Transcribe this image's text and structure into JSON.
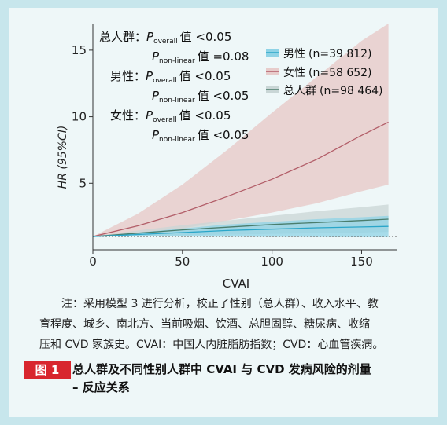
{
  "chart_data": {
    "type": "line",
    "xlabel": "CVAI",
    "ylabel": "HR (95%CI)",
    "xlim": [
      0,
      170
    ],
    "ylim": [
      0,
      17
    ],
    "xticks": [
      0,
      50,
      100,
      150
    ],
    "yticks": [
      5,
      10,
      15
    ],
    "reference_line": 1,
    "x": [
      0,
      25,
      50,
      75,
      100,
      125,
      150,
      165
    ],
    "series": [
      {
        "name": "男性",
        "n_label": "(n=39 812)",
        "color": "#2aa6c9",
        "band_color": "#8fd3e6",
        "values": [
          1.0,
          1.15,
          1.3,
          1.45,
          1.55,
          1.65,
          1.72,
          1.76
        ],
        "lower": [
          1.0,
          1.02,
          1.0,
          0.98,
          0.97,
          0.96,
          0.95,
          0.95
        ],
        "upper": [
          1.0,
          1.3,
          1.6,
          1.9,
          2.1,
          2.3,
          2.45,
          2.55
        ]
      },
      {
        "name": "女性",
        "n_label": "(n=58 652)",
        "color": "#b25d68",
        "band_color": "#e7cccb",
        "values": [
          1.0,
          1.8,
          2.8,
          4.0,
          5.3,
          6.8,
          8.6,
          9.6
        ],
        "lower": [
          1.0,
          1.3,
          1.6,
          2.2,
          2.8,
          3.5,
          4.4,
          4.9
        ],
        "upper": [
          1.0,
          2.7,
          4.9,
          7.5,
          10.3,
          13.0,
          15.7,
          17.0
        ]
      },
      {
        "name": "总人群",
        "n_label": "(n=98 464)",
        "color": "#4a7d6d",
        "band_color": "#c9d6d6",
        "values": [
          1.0,
          1.25,
          1.5,
          1.7,
          1.9,
          2.05,
          2.2,
          2.3
        ],
        "lower": [
          1.0,
          1.05,
          1.1,
          1.15,
          1.2,
          1.25,
          1.3,
          1.35
        ],
        "upper": [
          1.0,
          1.45,
          1.85,
          2.2,
          2.55,
          2.9,
          3.2,
          3.4
        ]
      }
    ]
  },
  "annotations": {
    "total_label": "总人群：",
    "male_label": "男性：",
    "female_label": "女性：",
    "P": "P",
    "overall_sub": "overall",
    "nonlinear_sub": "non-linear",
    "total_overall": "值 <0.05",
    "total_nonlinear": "值 =0.08",
    "male_overall": "值 <0.05",
    "male_nonlinear": "值 <0.05",
    "female_overall": "值 <0.05",
    "female_nonlinear": "值 <0.05"
  },
  "note": {
    "line1": "注：采用模型 3 进行分析，校正了性别（总人群）、收入水平、教",
    "line2": "育程度、城乡、南北方、当前吸烟、饮酒、总胆固醇、糖尿病、收缩",
    "line3": "压和 CVD 家族史。CVAI：中国人内脏脂肪指数；CVD：心血管疾病。"
  },
  "figure": {
    "tag": "图 1",
    "caption_line1": "总人群及不同性别人群中 CVAI 与 CVD 发病风险的剂量",
    "caption_line2": "– 反应关系"
  }
}
